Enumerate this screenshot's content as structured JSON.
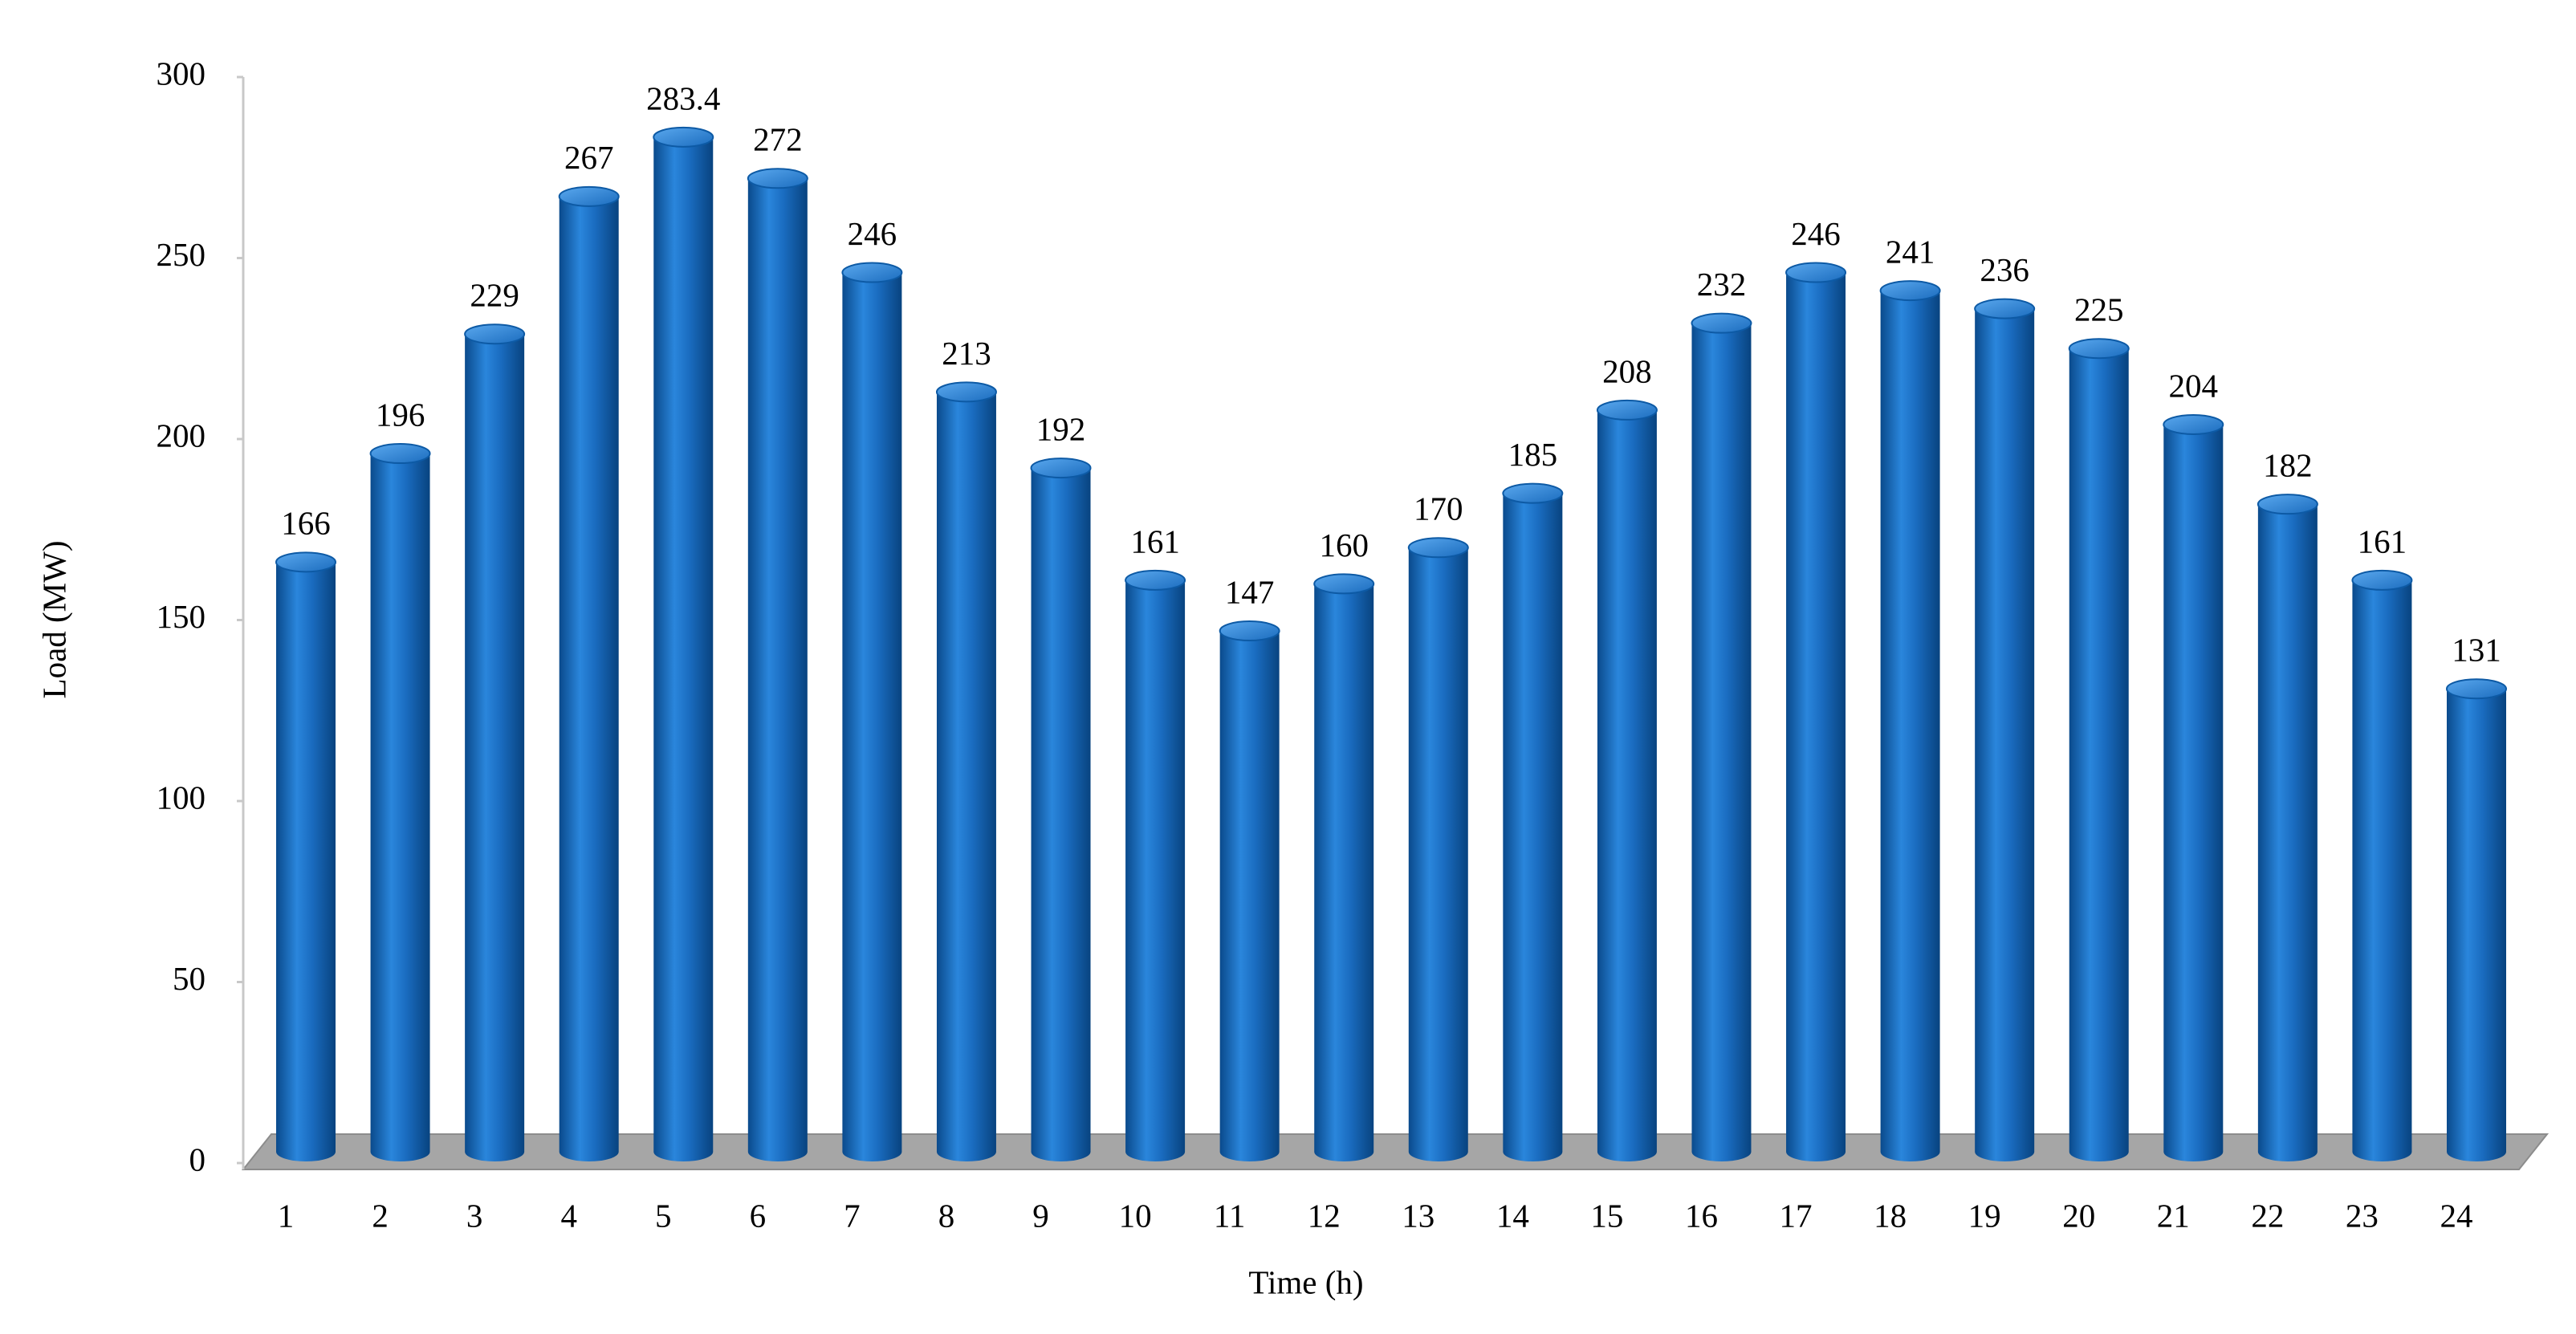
{
  "chart_data": {
    "type": "bar",
    "x_label": "Time (h)",
    "y_label": "Load (MW)",
    "categories": [
      "1",
      "2",
      "3",
      "4",
      "5",
      "6",
      "7",
      "8",
      "9",
      "10",
      "11",
      "12",
      "13",
      "14",
      "15",
      "16",
      "17",
      "18",
      "19",
      "20",
      "21",
      "22",
      "23",
      "24"
    ],
    "values": [
      166,
      196,
      229,
      267,
      283.4,
      272,
      246,
      213,
      192,
      161,
      147,
      160,
      170,
      185,
      208,
      232,
      246,
      241,
      236,
      225,
      204,
      182,
      161,
      131
    ],
    "color": "#1a6cc0",
    "ylim": [
      0,
      300
    ],
    "yticks": [
      0,
      50,
      100,
      150,
      200,
      250,
      300
    ],
    "grid": false
  }
}
